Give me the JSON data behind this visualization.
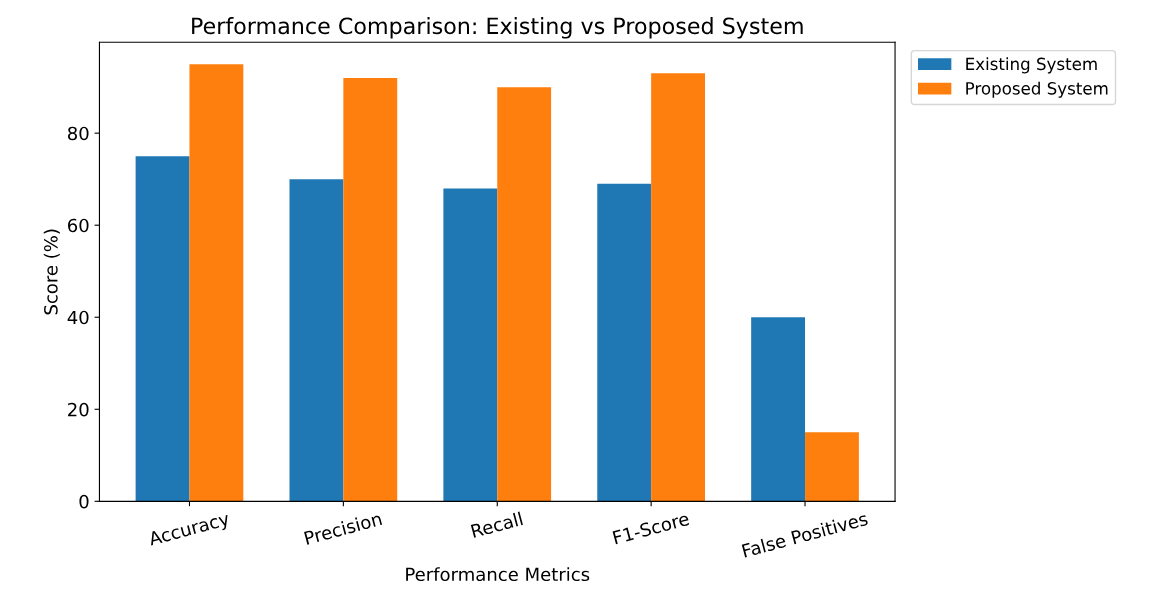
{
  "chart_data": {
    "type": "bar",
    "title": "Performance Comparison: Existing vs Proposed System",
    "xlabel": "Performance Metrics",
    "ylabel": "Score (%)",
    "categories": [
      "Accuracy",
      "Precision",
      "Recall",
      "F1-Score",
      "False Positives"
    ],
    "series": [
      {
        "name": "Existing System",
        "color": "#1f77b4",
        "values": [
          75,
          70,
          68,
          69,
          40
        ]
      },
      {
        "name": "Proposed System",
        "color": "#ff7f0e",
        "values": [
          95,
          92,
          90,
          93,
          15
        ]
      }
    ],
    "ylim": [
      0,
      99.75
    ],
    "yticks": [
      0,
      20,
      40,
      60,
      80
    ],
    "grid": false,
    "legend": "top right"
  }
}
